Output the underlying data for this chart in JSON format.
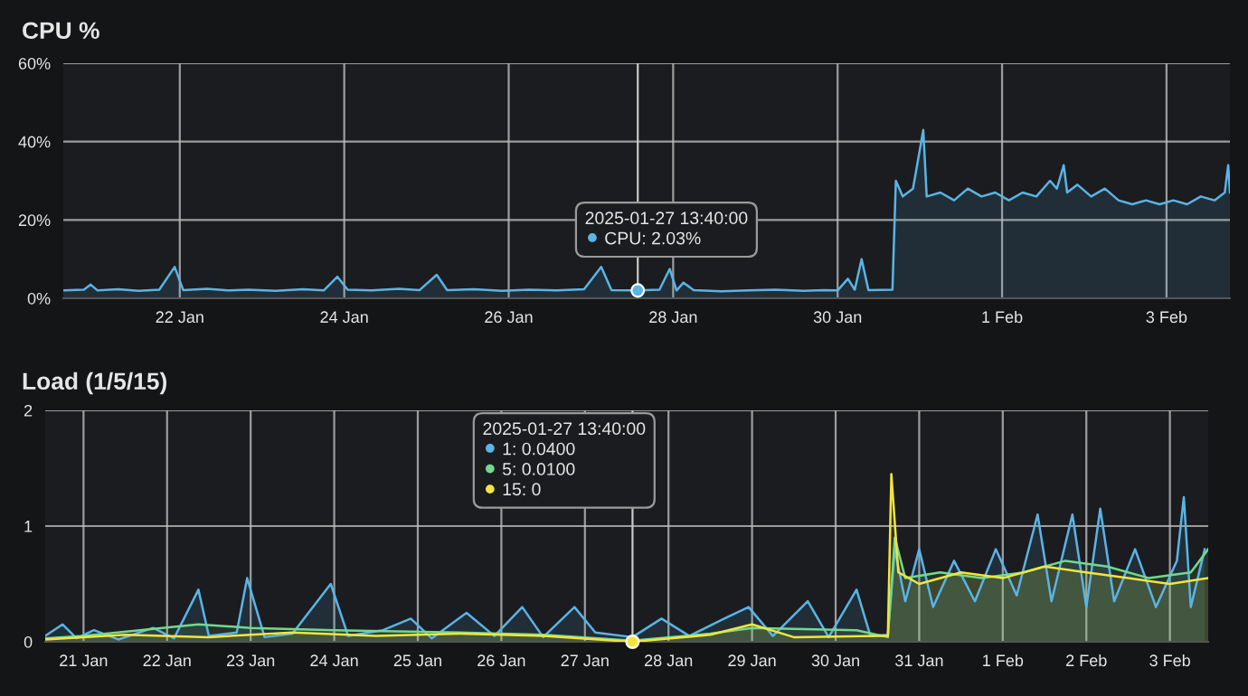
{
  "chart_data": [
    {
      "type": "area",
      "title": "CPU %",
      "xlim": [
        "2025-01-20T14:00",
        "2025-02-03T18:30"
      ],
      "ylim": [
        0,
        60
      ],
      "xticks": [
        {
          "value": "2025-01-22",
          "label": "22 Jan"
        },
        {
          "value": "2025-01-24",
          "label": "24 Jan"
        },
        {
          "value": "2025-01-26",
          "label": "26 Jan"
        },
        {
          "value": "2025-01-28",
          "label": "28 Jan"
        },
        {
          "value": "2025-01-30",
          "label": "30 Jan"
        },
        {
          "value": "2025-02-01",
          "label": "1 Feb"
        },
        {
          "value": "2025-02-03",
          "label": "3 Feb"
        }
      ],
      "yticks": [
        {
          "value": 0,
          "label": "0%"
        },
        {
          "value": 20,
          "label": "20%"
        },
        {
          "value": 40,
          "label": "40%"
        },
        {
          "value": 60,
          "label": "60%"
        }
      ],
      "grid": true,
      "legend": false,
      "marker": "none",
      "line_style": "solid",
      "ref_lines": [
        {
          "axis": "x",
          "value": "2025-01-27T13:40",
          "color": "#c8c8c8"
        }
      ],
      "annotations": [
        "2025-01-27 13:40:00\nCPU: 2.03%"
      ],
      "series": [
        {
          "color": "#5ab4e6",
          "x": [
            "2025-01-20T14:00",
            "2025-01-20T20:00",
            "2025-01-20T22:00",
            "2025-01-21T00:00",
            "2025-01-21T06:00",
            "2025-01-21T12:00",
            "2025-01-21T18:00",
            "2025-01-21T22:30",
            "2025-01-22T01:00",
            "2025-01-22T08:00",
            "2025-01-22T14:00",
            "2025-01-22T20:00",
            "2025-01-23T04:00",
            "2025-01-23T12:00",
            "2025-01-23T18:00",
            "2025-01-23T22:00",
            "2025-01-24T01:00",
            "2025-01-24T08:00",
            "2025-01-24T16:00",
            "2025-01-24T22:00",
            "2025-01-25T03:00",
            "2025-01-25T06:00",
            "2025-01-25T14:00",
            "2025-01-25T22:00",
            "2025-01-26T06:00",
            "2025-01-26T14:00",
            "2025-01-26T22:00",
            "2025-01-27T03:00",
            "2025-01-27T06:00",
            "2025-01-27T13:40",
            "2025-01-27T20:00",
            "2025-01-27T23:00",
            "2025-01-28T01:00",
            "2025-01-28T03:00",
            "2025-01-28T06:00",
            "2025-01-28T14:00",
            "2025-01-28T22:00",
            "2025-01-29T06:00",
            "2025-01-29T14:00",
            "2025-01-29T20:00",
            "2025-01-30T00:00",
            "2025-01-30T03:00",
            "2025-01-30T05:00",
            "2025-01-30T07:00",
            "2025-01-30T09:00",
            "2025-01-30T16:00",
            "2025-01-30T17:00",
            "2025-01-30T19:00",
            "2025-01-30T22:00",
            "2025-01-31T01:00",
            "2025-01-31T02:00",
            "2025-01-31T06:00",
            "2025-01-31T10:00",
            "2025-01-31T14:00",
            "2025-01-31T18:00",
            "2025-01-31T22:00",
            "2025-02-01T02:00",
            "2025-02-01T06:00",
            "2025-02-01T10:00",
            "2025-02-01T14:00",
            "2025-02-01T16:00",
            "2025-02-01T18:00",
            "2025-02-01T19:00",
            "2025-02-01T22:00",
            "2025-02-02T02:00",
            "2025-02-02T06:00",
            "2025-02-02T10:00",
            "2025-02-02T14:00",
            "2025-02-02T18:00",
            "2025-02-02T22:00",
            "2025-02-03T02:00",
            "2025-02-03T06:00",
            "2025-02-03T10:00",
            "2025-02-03T14:00",
            "2025-02-03T17:00",
            "2025-02-03T18:00",
            "2025-02-03T18:30"
          ],
          "values": [
            2.0,
            2.2,
            3.5,
            2.0,
            2.3,
            1.9,
            2.2,
            8.0,
            2.1,
            2.4,
            2.0,
            2.2,
            1.9,
            2.3,
            2.0,
            5.5,
            2.2,
            2.0,
            2.4,
            2.1,
            6.0,
            2.1,
            2.3,
            1.9,
            2.2,
            2.0,
            2.3,
            8.0,
            2.1,
            2.0,
            2.2,
            7.5,
            2.0,
            4.0,
            2.1,
            1.8,
            2.0,
            2.2,
            1.9,
            2.1,
            2.0,
            5.0,
            2.2,
            10.0,
            2.1,
            2.2,
            30,
            26,
            28,
            43,
            26,
            27,
            25,
            28,
            26,
            27,
            25,
            27,
            26,
            30,
            28,
            34,
            27,
            29,
            26,
            28,
            25,
            24,
            25,
            24,
            25,
            24,
            26,
            25,
            27,
            34,
            27
          ]
        }
      ]
    },
    {
      "type": "area",
      "title": "Load (1/5/15)",
      "xlim": [
        "2025-01-20T13:00",
        "2025-02-03T11:00"
      ],
      "ylim": [
        0,
        2
      ],
      "xticks": [
        {
          "value": "2025-01-21",
          "label": "21 Jan"
        },
        {
          "value": "2025-01-22",
          "label": "22 Jan"
        },
        {
          "value": "2025-01-23",
          "label": "23 Jan"
        },
        {
          "value": "2025-01-24",
          "label": "24 Jan"
        },
        {
          "value": "2025-01-25",
          "label": "25 Jan"
        },
        {
          "value": "2025-01-26",
          "label": "26 Jan"
        },
        {
          "value": "2025-01-27",
          "label": "27 Jan"
        },
        {
          "value": "2025-01-28",
          "label": "28 Jan"
        },
        {
          "value": "2025-01-29",
          "label": "29 Jan"
        },
        {
          "value": "2025-01-30",
          "label": "30 Jan"
        },
        {
          "value": "2025-01-31",
          "label": "31 Jan"
        },
        {
          "value": "2025-02-01",
          "label": "1 Feb"
        },
        {
          "value": "2025-02-02",
          "label": "2 Feb"
        },
        {
          "value": "2025-02-03",
          "label": "3 Feb"
        }
      ],
      "yticks": [
        0,
        1,
        2
      ],
      "grid": true,
      "legend": false,
      "marker": "none",
      "line_style": "solid",
      "ref_lines": [
        {
          "axis": "x",
          "value": "2025-01-27T13:40",
          "color": "#c8c8c8"
        }
      ],
      "annotations": [
        "2025-01-27 13:40:00\n1: 0.0400\n5: 0.0100\n15: 0"
      ],
      "series": [
        {
          "color": "#5ab4e6",
          "x": [
            "2025-01-20T13:00",
            "2025-01-20T18:00",
            "2025-01-20T22:00",
            "2025-01-21T03:00",
            "2025-01-21T10:00",
            "2025-01-21T20:00",
            "2025-01-22T02:00",
            "2025-01-22T09:00",
            "2025-01-22T12:00",
            "2025-01-22T20:00",
            "2025-01-22T23:00",
            "2025-01-23T04:00",
            "2025-01-23T12:00",
            "2025-01-23T23:00",
            "2025-01-24T04:00",
            "2025-01-24T14:00",
            "2025-01-24T22:00",
            "2025-01-25T04:00",
            "2025-01-25T14:00",
            "2025-01-25T22:00",
            "2025-01-26T06:00",
            "2025-01-26T12:00",
            "2025-01-26T21:00",
            "2025-01-27T03:00",
            "2025-01-27T13:40",
            "2025-01-27T22:00",
            "2025-01-28T06:00",
            "2025-01-28T16:00",
            "2025-01-28T23:00",
            "2025-01-29T06:00",
            "2025-01-29T16:00",
            "2025-01-29T22:00",
            "2025-01-30T06:00",
            "2025-01-30T10:00",
            "2025-01-30T15:00",
            "2025-01-30T17:00",
            "2025-01-30T20:00",
            "2025-01-31T00:00",
            "2025-01-31T04:00",
            "2025-01-31T10:00",
            "2025-01-31T16:00",
            "2025-01-31T22:00",
            "2025-02-01T04:00",
            "2025-02-01T10:00",
            "2025-02-01T14:00",
            "2025-02-01T20:00",
            "2025-02-02T00:00",
            "2025-02-02T04:00",
            "2025-02-02T08:00",
            "2025-02-02T14:00",
            "2025-02-02T20:00",
            "2025-02-03T02:00",
            "2025-02-03T04:00",
            "2025-02-03T06:00",
            "2025-02-03T10:00"
          ],
          "values": [
            0.05,
            0.15,
            0.03,
            0.1,
            0.02,
            0.12,
            0.03,
            0.45,
            0.05,
            0.08,
            0.55,
            0.04,
            0.07,
            0.5,
            0.05,
            0.1,
            0.2,
            0.03,
            0.25,
            0.05,
            0.3,
            0.04,
            0.3,
            0.08,
            0.04,
            0.2,
            0.05,
            0.2,
            0.3,
            0.05,
            0.35,
            0.04,
            0.45,
            0.05,
            0.06,
            0.8,
            0.35,
            0.8,
            0.3,
            0.7,
            0.35,
            0.8,
            0.4,
            1.1,
            0.35,
            1.1,
            0.3,
            1.15,
            0.35,
            0.8,
            0.3,
            0.7,
            1.25,
            0.3,
            0.8
          ]
        },
        {
          "color": "#73d98b",
          "x": [
            "2025-01-20T13:00",
            "2025-01-21T00:00",
            "2025-01-22T09:00",
            "2025-01-23T00:00",
            "2025-01-24T00:00",
            "2025-01-25T12:00",
            "2025-01-26T12:00",
            "2025-01-27T13:40",
            "2025-01-28T12:00",
            "2025-01-29T00:00",
            "2025-01-30T06:00",
            "2025-01-30T15:00",
            "2025-01-30T17:00",
            "2025-01-30T20:00",
            "2025-01-31T06:00",
            "2025-01-31T18:00",
            "2025-02-01T06:00",
            "2025-02-01T18:00",
            "2025-02-02T06:00",
            "2025-02-02T18:00",
            "2025-02-03T06:00",
            "2025-02-03T11:00"
          ],
          "values": [
            0.03,
            0.05,
            0.15,
            0.12,
            0.1,
            0.08,
            0.06,
            0.01,
            0.07,
            0.12,
            0.1,
            0.04,
            0.9,
            0.55,
            0.6,
            0.55,
            0.6,
            0.7,
            0.65,
            0.55,
            0.6,
            0.8
          ]
        },
        {
          "color": "#f2e53d",
          "x": [
            "2025-01-20T13:00",
            "2025-01-21T12:00",
            "2025-01-22T12:00",
            "2025-01-23T12:00",
            "2025-01-24T12:00",
            "2025-01-25T12:00",
            "2025-01-26T12:00",
            "2025-01-27T13:40",
            "2025-01-28T12:00",
            "2025-01-29T00:00",
            "2025-01-29T12:00",
            "2025-01-30T12:00",
            "2025-01-30T15:00",
            "2025-01-30T16:00",
            "2025-01-30T18:00",
            "2025-01-31T00:00",
            "2025-01-31T12:00",
            "2025-02-01T00:00",
            "2025-02-01T12:00",
            "2025-02-02T00:00",
            "2025-02-02T12:00",
            "2025-02-03T00:00",
            "2025-02-03T11:00"
          ],
          "values": [
            0.02,
            0.06,
            0.04,
            0.08,
            0.05,
            0.07,
            0.05,
            0,
            0.06,
            0.15,
            0.04,
            0.05,
            0.05,
            1.45,
            0.6,
            0.5,
            0.6,
            0.55,
            0.65,
            0.6,
            0.55,
            0.5,
            0.55
          ]
        }
      ]
    }
  ]
}
